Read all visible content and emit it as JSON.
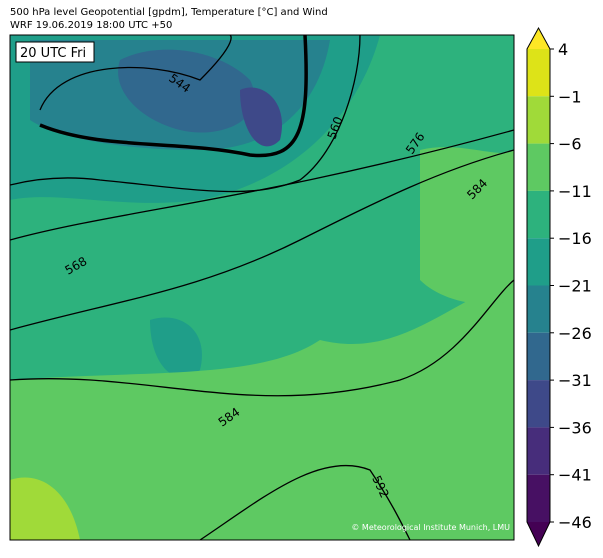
{
  "header": {
    "line1": "500 hPa level Geopotential [gpdm], Temperature [°C] and Wind",
    "line2": "WRF 19.06.2019 18:00 UTC +50"
  },
  "map": {
    "time_label": "20 UTC Fri",
    "contour_labels": [
      "544",
      "560",
      "576",
      "584",
      "568",
      "584",
      "592"
    ],
    "copyright": "© Meteorological Institute Munich, LMU"
  },
  "colorbar": {
    "ticks": [
      4,
      {
        "value": -1,
        "label": "−1"
      },
      {
        "value": -6,
        "label": "−6"
      },
      {
        "value": -11,
        "label": "−11"
      },
      {
        "value": -16,
        "label": "−16"
      },
      {
        "value": -21,
        "label": "−21"
      },
      {
        "value": -26,
        "label": "−26"
      },
      {
        "value": -31,
        "label": "−31"
      },
      {
        "value": -36,
        "label": "−36"
      },
      {
        "value": -41,
        "label": "−41"
      },
      {
        "value": -46,
        "label": "−46"
      }
    ],
    "colors": [
      "#dde318",
      "#a0da39",
      "#5ec962",
      "#2db27d",
      "#1f9e89",
      "#26828e",
      "#31688e",
      "#3e4989",
      "#472d7b",
      "#471063"
    ],
    "over_color": "#fde725",
    "under_color": "#440154"
  }
}
